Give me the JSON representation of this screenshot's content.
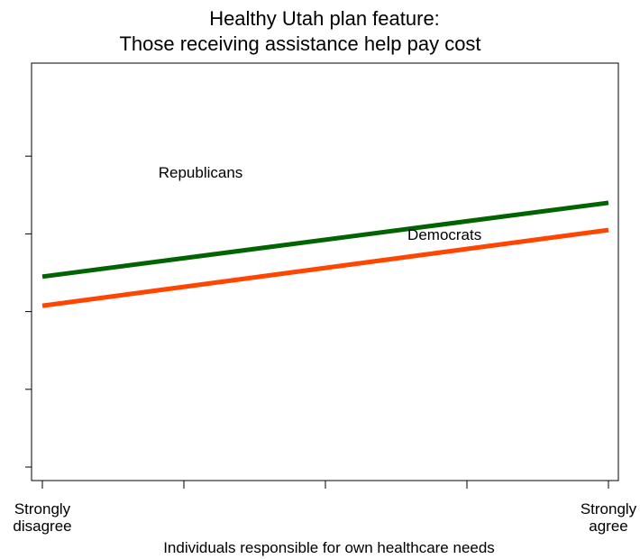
{
  "chart_data": {
    "type": "line",
    "title": [
      "Healthy Utah plan feature:",
      "Those receiving assistance help pay cost"
    ],
    "xlabel": "Individuals responsible for own healthcare needs",
    "ylabel": "",
    "x": [
      1,
      5
    ],
    "xlim": [
      1,
      5
    ],
    "ylim": [
      0,
      1
    ],
    "x_ticks": [
      1,
      2,
      3,
      4,
      5
    ],
    "x_tick_labels": [
      [
        "Strongly",
        "disagree"
      ],
      [],
      [],
      [],
      [
        "Strongly",
        "agree"
      ]
    ],
    "y_ticks": [
      0.0,
      0.2,
      0.4,
      0.6,
      0.8
    ],
    "grid": false,
    "legend": "none",
    "series": [
      {
        "name": "Republicans",
        "values": [
          0.49,
          0.68
        ],
        "color": "#006400",
        "label_at": [
          1.82,
          0.745
        ]
      },
      {
        "name": "Democrats",
        "values": [
          0.415,
          0.61
        ],
        "color": "#ff4500",
        "label_at": [
          3.58,
          0.585
        ]
      }
    ]
  }
}
